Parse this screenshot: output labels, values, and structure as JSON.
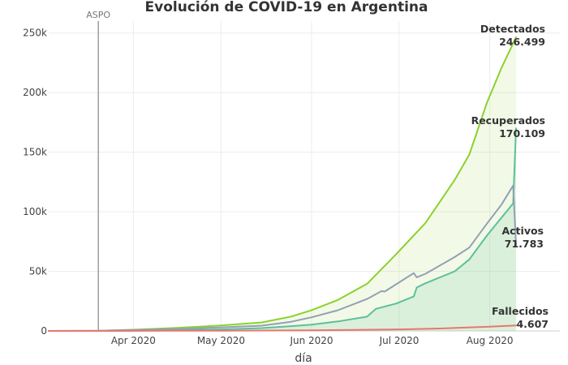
{
  "chart_data": {
    "type": "area",
    "title": "Evolución de COVID-19 en Argentina",
    "xlabel": "día",
    "ylabel": "",
    "xlim": [
      "2020-03-03",
      "2020-08-25"
    ],
    "ylim": [
      0,
      260000
    ],
    "y_ticks": [
      0,
      50000,
      100000,
      150000,
      200000,
      250000
    ],
    "y_tick_labels": [
      "0",
      "50k",
      "100k",
      "150k",
      "200k",
      "250k"
    ],
    "x_ticks": [
      "2020-04-01",
      "2020-05-01",
      "2020-06-01",
      "2020-07-01",
      "2020-08-01"
    ],
    "x_tick_labels": [
      "Apr 2020",
      "May 2020",
      "Jun 2020",
      "Jul 2020",
      "Aug 2020"
    ],
    "grid": true,
    "legend": "none",
    "vline": {
      "x": "2020-03-20",
      "label": "ASPO",
      "color": "#9e9e9e"
    },
    "series": [
      {
        "color": "#8cd12e",
        "fill": "rgba(181,229,120,0.18)",
        "x": [
          "2020-03-03",
          "2020-03-20",
          "2020-04-01",
          "2020-04-15",
          "2020-05-01",
          "2020-05-15",
          "2020-05-25",
          "2020-06-01",
          "2020-06-10",
          "2020-06-20",
          "2020-06-30",
          "2020-07-10",
          "2020-07-20",
          "2020-07-25",
          "2020-07-31",
          "2020-08-05",
          "2020-08-10"
        ],
        "values": [
          1,
          128,
          1054,
          2443,
          4532,
          7134,
          12076,
          17415,
          25987,
          39570,
          64530,
          90693,
          126755,
          148027,
          191302,
          220682,
          246499
        ]
      },
      {
        "color": "#5dbf9b",
        "fill": "rgba(93,191,155,0.16)",
        "x": [
          "2020-03-03",
          "2020-03-20",
          "2020-04-01",
          "2020-04-15",
          "2020-05-01",
          "2020-05-15",
          "2020-05-25",
          "2020-06-01",
          "2020-06-10",
          "2020-06-20",
          "2020-06-23",
          "2020-06-30",
          "2020-07-06",
          "2020-07-07",
          "2020-07-10",
          "2020-07-20",
          "2020-07-25",
          "2020-07-31",
          "2020-08-05",
          "2020-08-09",
          "2020-08-10"
        ],
        "values": [
          0,
          3,
          228,
          685,
          1297,
          2385,
          3999,
          5336,
          7991,
          12000,
          18500,
          23000,
          29000,
          36500,
          40000,
          50000,
          60000,
          80000,
          95000,
          107000,
          170109
        ]
      },
      {
        "color": "#93a0b5",
        "fill": "none",
        "x": [
          "2020-03-03",
          "2020-03-20",
          "2020-04-01",
          "2020-04-15",
          "2020-05-01",
          "2020-05-15",
          "2020-05-25",
          "2020-06-01",
          "2020-06-10",
          "2020-06-20",
          "2020-06-25",
          "2020-06-26",
          "2020-07-06",
          "2020-07-07",
          "2020-07-10",
          "2020-07-20",
          "2020-07-25",
          "2020-07-31",
          "2020-08-05",
          "2020-08-09",
          "2020-08-10"
        ],
        "values": [
          1,
          122,
          787,
          1588,
          2969,
          4421,
          7705,
          11424,
          17350,
          26800,
          33500,
          33000,
          48500,
          45000,
          48000,
          62000,
          70000,
          90000,
          106000,
          122000,
          71783
        ]
      },
      {
        "color": "#e8776e",
        "fill": "none",
        "x": [
          "2020-03-03",
          "2020-03-20",
          "2020-04-01",
          "2020-04-15",
          "2020-05-01",
          "2020-05-15",
          "2020-06-01",
          "2020-06-15",
          "2020-07-01",
          "2020-07-15",
          "2020-08-01",
          "2020-08-10"
        ],
        "values": [
          0,
          3,
          36,
          132,
          225,
          329,
          528,
          792,
          1307,
          2050,
          3596,
          4607
        ]
      }
    ],
    "annotations": [
      {
        "name": "Detectados",
        "value_label": "246.499",
        "x": "2020-08-10",
        "y": 246499
      },
      {
        "name": "Recuperados",
        "value_label": "170.109",
        "x": "2020-08-10",
        "y": 170109
      },
      {
        "name": "Activos",
        "value_label": "71.783",
        "x": "2020-08-10",
        "y": 71783
      },
      {
        "name": "Fallecidos",
        "value_label": "4.607",
        "x": "2020-08-10",
        "y": 4607
      }
    ]
  }
}
